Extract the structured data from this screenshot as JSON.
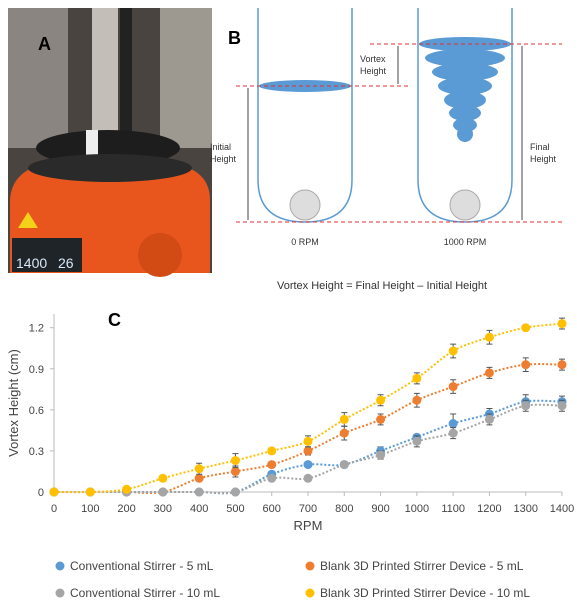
{
  "panels": {
    "a": {
      "label": "A",
      "display": [
        "1400",
        "26"
      ]
    },
    "b": {
      "label": "B",
      "vortex_height": [
        "Vortex",
        "Height"
      ],
      "initial_height": [
        "Initial",
        "Height"
      ],
      "final_height": [
        "Final",
        "Height"
      ],
      "left_tube": "0 RPM",
      "right_tube": "1000 RPM",
      "equation": "Vortex Height = Final Height – Initial Height"
    },
    "c": {
      "label": "C"
    }
  },
  "chart_data": {
    "type": "scatter",
    "xlabel": "RPM",
    "ylabel": "Vortex Height (cm)",
    "x": [
      0,
      100,
      200,
      300,
      400,
      500,
      600,
      700,
      800,
      900,
      1000,
      1100,
      1200,
      1300,
      1400
    ],
    "xlim": [
      0,
      1400
    ],
    "xticks": [
      0,
      100,
      200,
      300,
      400,
      500,
      600,
      700,
      800,
      900,
      1000,
      1100,
      1200,
      1300,
      1400
    ],
    "ylim": [
      0,
      1.3
    ],
    "yticks": [
      0,
      0.3,
      0.6,
      0.9,
      1.2
    ],
    "trendline": true,
    "legend": "bottom",
    "grid": false,
    "series": [
      {
        "name": "Conventional Stirrer - 5 mL",
        "color": "#5b9bd5",
        "values": [
          0,
          0,
          0,
          0,
          0,
          0,
          0.13,
          0.2,
          0.2,
          0.3,
          0.4,
          0.5,
          0.57,
          0.66,
          0.66
        ],
        "errors": [
          0,
          0,
          0,
          0,
          0,
          0,
          0.02,
          0.02,
          0.02,
          0.03,
          0.02,
          0.07,
          0.04,
          0.05,
          0.04
        ]
      },
      {
        "name": "Blank 3D Printed Stirrer Device - 5 mL",
        "color": "#ed7d31",
        "values": [
          0,
          0,
          0,
          0,
          0.1,
          0.15,
          0.2,
          0.3,
          0.43,
          0.53,
          0.67,
          0.77,
          0.87,
          0.93,
          0.93
        ],
        "errors": [
          0,
          0,
          0,
          0,
          0.02,
          0.04,
          0.02,
          0.03,
          0.05,
          0.04,
          0.05,
          0.05,
          0.04,
          0.05,
          0.04
        ]
      },
      {
        "name": "Conventional Stirrer - 10 mL",
        "color": "#a5a5a5",
        "values": [
          0,
          0,
          0,
          0,
          0,
          0,
          0.1,
          0.1,
          0.2,
          0.27,
          0.37,
          0.43,
          0.53,
          0.63,
          0.63
        ],
        "errors": [
          0,
          0,
          0,
          0,
          0,
          0,
          0.02,
          0.02,
          0.02,
          0.03,
          0.04,
          0.04,
          0.04,
          0.04,
          0.04
        ]
      },
      {
        "name": "Blank 3D Printed Stirrer Device - 10 mL",
        "color": "#ffc000",
        "values": [
          0,
          0,
          0.02,
          0.1,
          0.17,
          0.23,
          0.3,
          0.37,
          0.53,
          0.67,
          0.83,
          1.03,
          1.13,
          1.2,
          1.23
        ],
        "errors": [
          0,
          0,
          0,
          0.02,
          0.04,
          0.05,
          0.02,
          0.04,
          0.05,
          0.04,
          0.04,
          0.05,
          0.05,
          0.02,
          0.04
        ]
      }
    ]
  }
}
